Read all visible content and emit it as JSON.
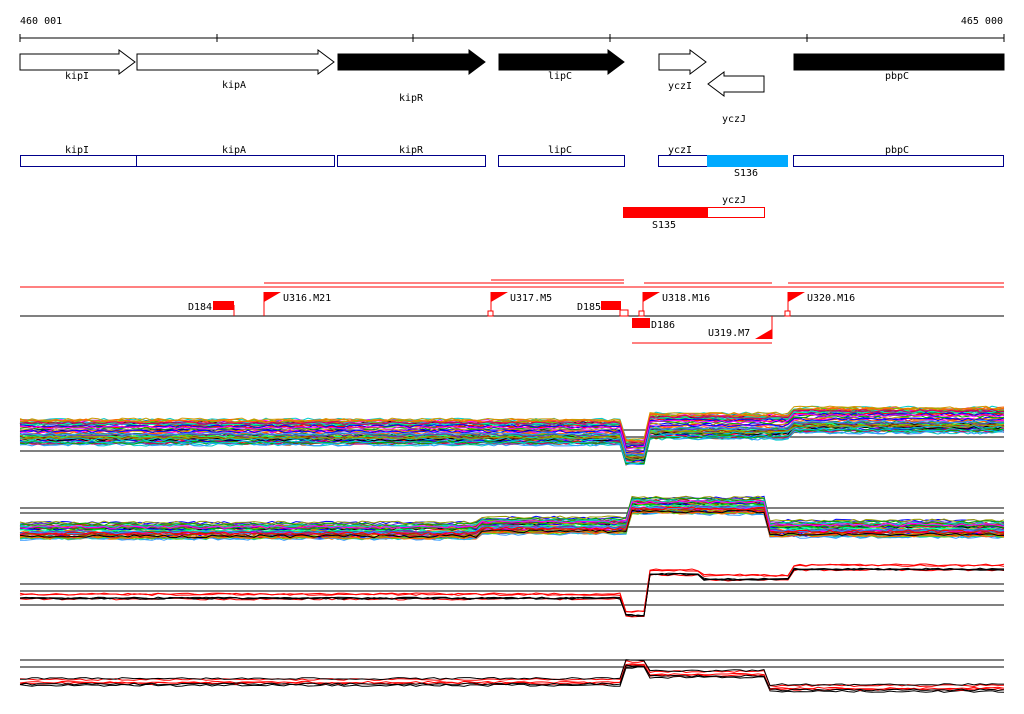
{
  "coordinates": {
    "start": "460 001",
    "end": "465 000"
  },
  "colors": {
    "gene_outline": "#000000",
    "gene_filled": "#000000",
    "annotation_outline": "#00008b",
    "annotation_highlight": "#00aaff",
    "segment_red": "#ff0000",
    "baseline": "#000000"
  },
  "genes": [
    {
      "label": "kipI",
      "filled": false,
      "strand": "+"
    },
    {
      "label": "kipA",
      "filled": false,
      "strand": "+"
    },
    {
      "label": "kipR",
      "filled": true,
      "strand": "+"
    },
    {
      "label": "lipC",
      "filled": true,
      "strand": "+"
    },
    {
      "label": "yczI",
      "filled": false,
      "strand": "+"
    },
    {
      "label": "yczJ",
      "filled": false,
      "strand": "-"
    },
    {
      "label": "pbpC",
      "filled": true,
      "strand": "+"
    }
  ],
  "annotation_boxes": [
    {
      "label": "kipI"
    },
    {
      "label": "kipA"
    },
    {
      "label": "kipR"
    },
    {
      "label": "lipC"
    },
    {
      "label": "yczI"
    },
    {
      "label": "S136"
    },
    {
      "label": "pbpC"
    }
  ],
  "segment_track": [
    {
      "label": "yczJ"
    },
    {
      "label": "S135"
    }
  ],
  "regulatory_features": [
    {
      "label": "D184",
      "type": "block"
    },
    {
      "label": "U316.M21",
      "type": "flag"
    },
    {
      "label": "U317.M5",
      "type": "flag"
    },
    {
      "label": "D185",
      "type": "block"
    },
    {
      "label": "U318.M16",
      "type": "flag"
    },
    {
      "label": "D186",
      "type": "block"
    },
    {
      "label": "U319.M7",
      "type": "flag-reverse"
    },
    {
      "label": "U320.M16",
      "type": "flag"
    }
  ],
  "expression_panels": [
    {
      "name": "panel-1",
      "description_colors": "multicolor"
    },
    {
      "name": "panel-2",
      "description_colors": "multicolor"
    },
    {
      "name": "panel-3",
      "description_colors": "red-black"
    },
    {
      "name": "panel-4",
      "description_colors": "red-black"
    }
  ]
}
